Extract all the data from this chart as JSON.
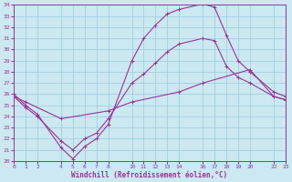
{
  "xlabel": "Windchill (Refroidissement éolien,°C)",
  "bg_color": "#cce8f0",
  "grid_color": "#99cce0",
  "line_color": "#993399",
  "spine_color": "#993399",
  "ylim": [
    20,
    34
  ],
  "xlim": [
    0,
    23
  ],
  "yticks": [
    20,
    21,
    22,
    23,
    24,
    25,
    26,
    27,
    28,
    29,
    30,
    31,
    32,
    33,
    34
  ],
  "xticks": [
    0,
    1,
    2,
    4,
    5,
    6,
    7,
    8,
    10,
    11,
    12,
    13,
    14,
    16,
    17,
    18,
    19,
    20,
    22,
    23
  ],
  "line1_x": [
    0,
    1,
    2,
    4,
    5,
    6,
    7,
    8,
    10,
    11,
    12,
    13,
    14,
    16,
    17,
    18,
    19,
    20,
    22,
    23
  ],
  "line1_y": [
    26.0,
    25.0,
    24.2,
    21.2,
    20.2,
    21.3,
    22.0,
    23.3,
    29.0,
    31.0,
    32.2,
    33.2,
    33.6,
    34.1,
    33.8,
    31.3,
    29.0,
    28.0,
    26.2,
    25.8
  ],
  "line2_x": [
    0,
    1,
    2,
    4,
    5,
    6,
    7,
    8,
    10,
    11,
    12,
    13,
    14,
    16,
    17,
    18,
    19,
    20,
    22,
    23
  ],
  "line2_y": [
    25.8,
    24.8,
    24.0,
    21.8,
    21.0,
    22.0,
    22.5,
    23.8,
    27.0,
    27.8,
    28.8,
    29.8,
    30.5,
    31.0,
    30.8,
    28.5,
    27.5,
    27.0,
    25.8,
    25.5
  ],
  "line3_x": [
    0,
    1,
    4,
    8,
    10,
    14,
    16,
    20,
    22,
    23
  ],
  "line3_y": [
    25.8,
    25.3,
    23.8,
    24.5,
    25.3,
    26.2,
    27.0,
    28.2,
    25.8,
    25.5
  ],
  "marker_size": 2.5,
  "line_width": 0.8,
  "tick_fontsize": 4.5,
  "xlabel_fontsize": 5.5
}
